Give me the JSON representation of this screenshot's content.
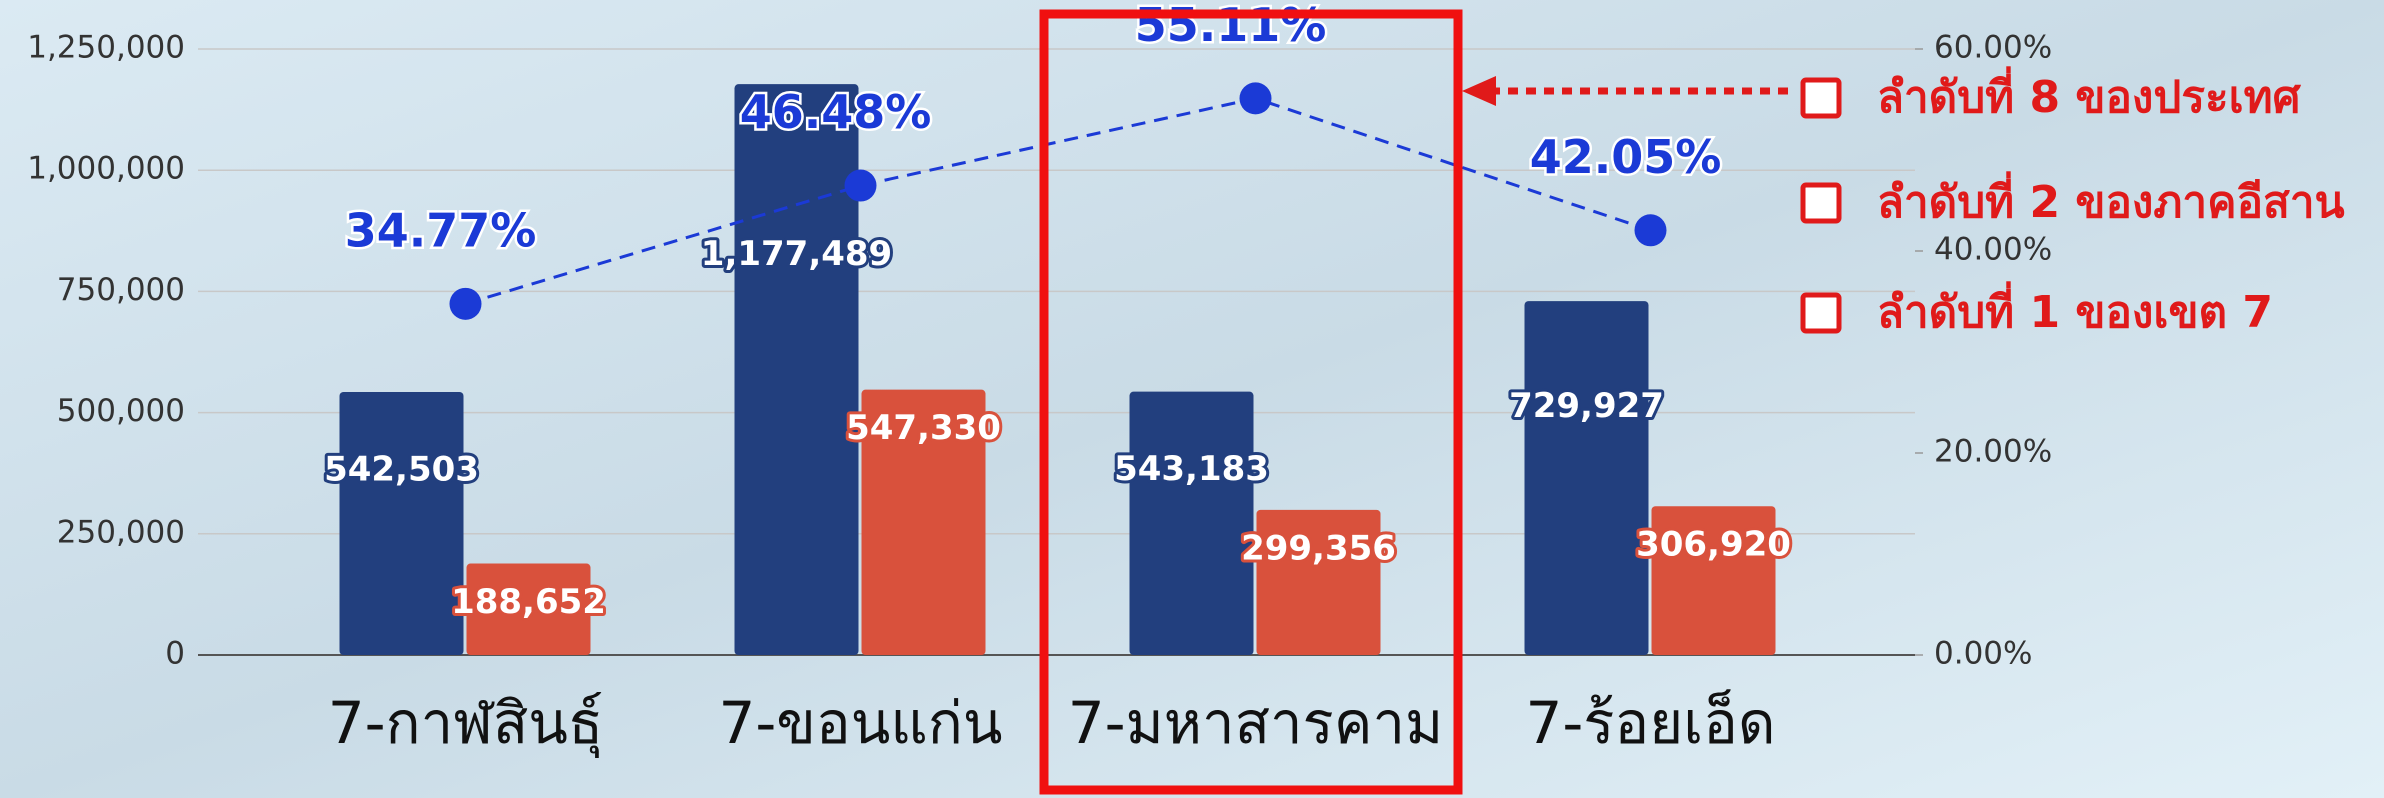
{
  "chart_data": {
    "type": "bar",
    "categories": [
      "7-กาฬสินธุ์",
      "7-ขอนแก่น",
      "7-มหาสารคาม",
      "7-ร้อยเอ็ด"
    ],
    "series": [
      {
        "color": "#223f7e",
        "values": [
          542503,
          1177489,
          543183,
          729927
        ],
        "value_labels": [
          "542,503",
          "1,177,489",
          "543,183",
          "729,927"
        ]
      },
      {
        "color": "#d9513c",
        "values": [
          188652,
          547330,
          299356,
          306920
        ],
        "value_labels": [
          "188,652",
          "547,330",
          "299,356",
          "306,920"
        ]
      },
      {
        "type": "line",
        "axis": "y2",
        "color": "#1b3ad6",
        "values": [
          34.77,
          46.48,
          55.11,
          42.05
        ],
        "value_labels": [
          "34.77%",
          "46.48%",
          "55.11%",
          "42.05%"
        ]
      }
    ],
    "ylim": [
      0,
      1250000
    ],
    "yticks": [
      {
        "value": 0,
        "label": "0"
      },
      {
        "value": 250000,
        "label": "250,000"
      },
      {
        "value": 500000,
        "label": "500,000"
      },
      {
        "value": 750000,
        "label": "750,000"
      },
      {
        "value": 1000000,
        "label": "1,000,000"
      },
      {
        "value": 1250000,
        "label": "1,250,000"
      }
    ],
    "y2lim": [
      0,
      60
    ],
    "y2ticks": [
      {
        "value": 0,
        "label": "0.00%"
      },
      {
        "value": 20,
        "label": "20.00%"
      },
      {
        "value": 40,
        "label": "40.00%"
      },
      {
        "value": 60,
        "label": "60.00%"
      }
    ],
    "grid": true,
    "annotations": [
      "ลำดับที่ 8 ของประเทศ",
      "ลำดับที่ 2 ของภาคอีสาน",
      "ลำดับที่ 1 ของเขต 7"
    ]
  }
}
